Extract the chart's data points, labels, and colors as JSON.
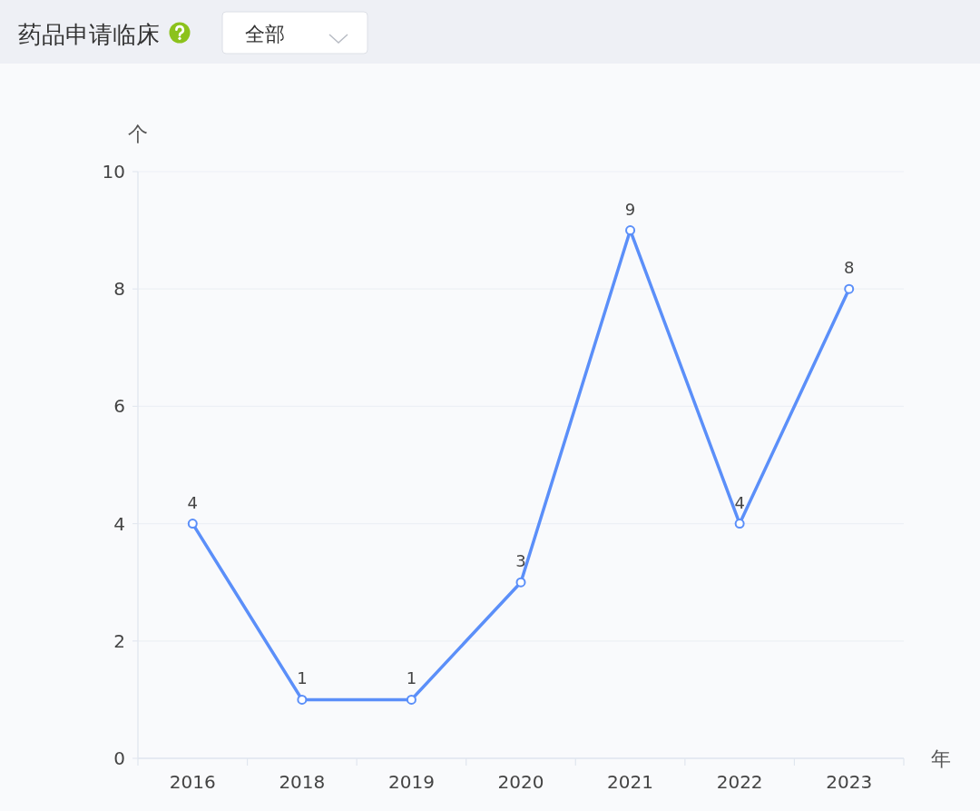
{
  "chart_data": {
    "type": "line",
    "title": "药品申请临床",
    "annotations": [
      "全部"
    ],
    "ylabel": "个",
    "xlabel": "年",
    "categories": [
      "2016",
      "2018",
      "2019",
      "2020",
      "2021",
      "2022",
      "2023"
    ],
    "values": [
      4,
      1,
      1,
      3,
      9,
      4,
      8
    ],
    "color": "#5b8ff9",
    "ylim": [
      0,
      10
    ],
    "yticks": [
      0,
      2,
      4,
      6,
      8,
      10
    ],
    "grid": "y",
    "marker": "circle",
    "line_style": "solid",
    "data_labels": true
  }
}
